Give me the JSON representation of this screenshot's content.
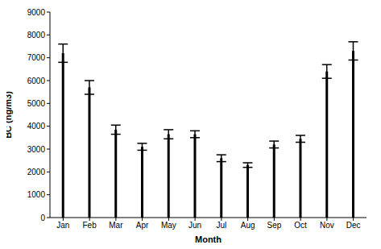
{
  "chart_data": {
    "type": "bar",
    "x_label": "Month",
    "y_label": "BC (ng/m3)",
    "categories": [
      "Jan",
      "Feb",
      "Mar",
      "Apr",
      "May",
      "Jun",
      "Jul",
      "Aug",
      "Sep",
      "Oct",
      "Nov",
      "Dec"
    ],
    "values": [
      7200,
      5700,
      3850,
      3100,
      3650,
      3650,
      2600,
      2300,
      3200,
      3450,
      6400,
      7300
    ],
    "errors": [
      400,
      300,
      200,
      150,
      200,
      150,
      150,
      100,
      150,
      150,
      300,
      400
    ],
    "color": "#000000",
    "ylim": [
      0,
      9000
    ],
    "yticks": [
      0,
      1000,
      2000,
      3000,
      4000,
      5000,
      6000,
      7000,
      8000,
      9000
    ],
    "grid": false
  }
}
